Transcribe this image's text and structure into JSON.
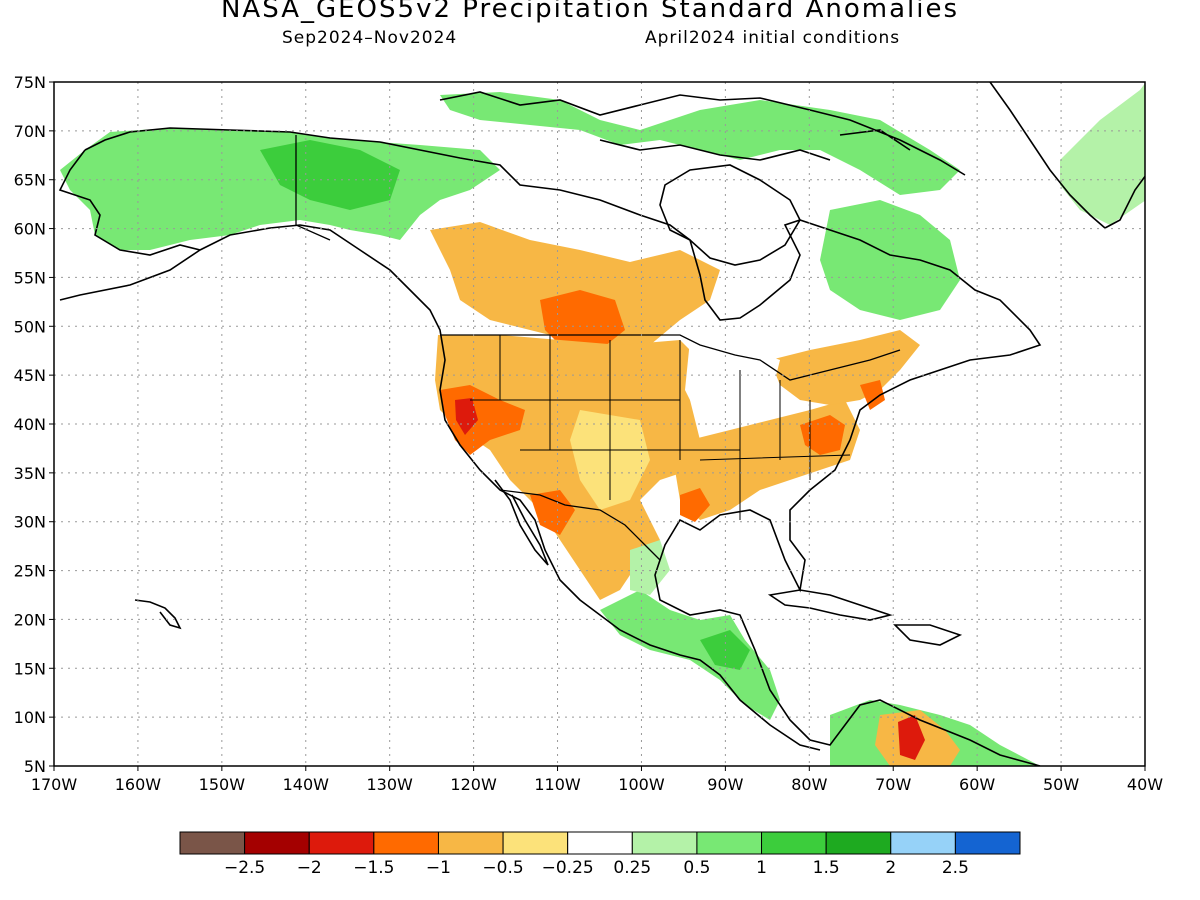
{
  "title": "NASA_GEOS5v2 Precipitation Standard Anomalies",
  "subtitle_left": "Sep2024–Nov2024",
  "subtitle_right": "April2024 initial conditions",
  "lat_labels": [
    "75N",
    "70N",
    "65N",
    "60N",
    "55N",
    "50N",
    "45N",
    "40N",
    "35N",
    "30N",
    "25N",
    "20N",
    "15N",
    "10N",
    "5N"
  ],
  "lon_labels": [
    "170W",
    "160W",
    "150W",
    "140W",
    "130W",
    "120W",
    "110W",
    "100W",
    "90W",
    "80W",
    "70W",
    "60W",
    "50W",
    "40W"
  ],
  "colorbar": {
    "colors": [
      "#7a5548",
      "#a40000",
      "#dd1a0c",
      "#ff6a00",
      "#f7b745",
      "#fce27a",
      "#ffffff",
      "#b4f2a8",
      "#78e874",
      "#3ccd3c",
      "#1eaa20",
      "#96d2f8",
      "#1464d2"
    ],
    "labels": [
      "−2.5",
      "−2",
      "−1.5",
      "−1",
      "−0.5",
      "−0.25",
      "0.25",
      "0.5",
      "1",
      "1.5",
      "2",
      "2.5"
    ]
  },
  "colors": {
    "land_dry_light": "#fce27a",
    "land_dry": "#f7b745",
    "land_dry_strong": "#ff6a00",
    "land_wet_light": "#b4f2a8",
    "land_wet": "#78e874",
    "land_wet_strong": "#3ccd3c"
  }
}
